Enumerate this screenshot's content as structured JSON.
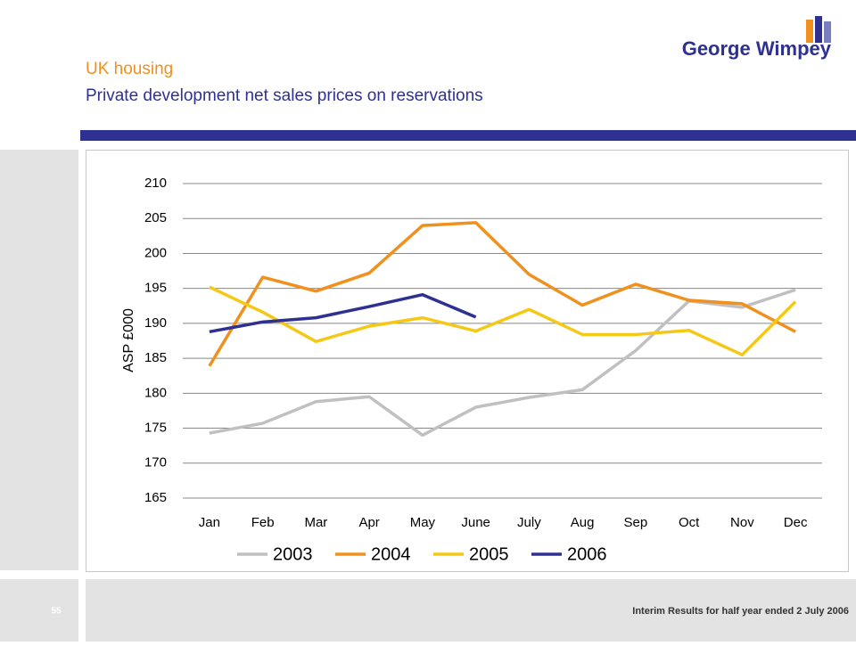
{
  "header": {
    "title": "UK housing",
    "subtitle": "Private development net sales prices on reservations",
    "logo": "George Wimpey"
  },
  "footer": {
    "page": "55",
    "text": "Interim Results for half year ended 2 July 2006"
  },
  "chart_data": {
    "type": "line",
    "ylabel": "ASP £000",
    "categories": [
      "Jan",
      "Feb",
      "Mar",
      "Apr",
      "May",
      "June",
      "July",
      "Aug",
      "Sep",
      "Oct",
      "Nov",
      "Dec"
    ],
    "series": [
      {
        "name": "2003",
        "color": "#c0c0c0",
        "values": [
          174.3,
          175.7,
          178.8,
          179.5,
          174.0,
          178.0,
          179.4,
          180.5,
          186.1,
          193.2,
          192.3,
          194.8
        ]
      },
      {
        "name": "2004",
        "color": "#f0901e",
        "values": [
          183.9,
          196.6,
          194.6,
          197.2,
          204.0,
          204.4,
          197.0,
          192.6,
          195.6,
          193.3,
          192.8,
          188.8
        ]
      },
      {
        "name": "2005",
        "color": "#f5c816",
        "values": [
          195.2,
          191.6,
          187.4,
          189.6,
          190.8,
          188.9,
          192.0,
          188.4,
          188.4,
          189.0,
          185.5,
          193.1
        ]
      },
      {
        "name": "2006",
        "color": "#2e3192",
        "values": [
          188.8,
          190.2,
          190.8,
          192.4,
          194.1,
          190.9,
          null,
          null,
          null,
          null,
          null,
          null
        ]
      }
    ],
    "ylim": [
      165,
      210
    ],
    "yticks": [
      165,
      170,
      175,
      180,
      185,
      190,
      195,
      200,
      205,
      210
    ],
    "grid": true,
    "legend": "bottom"
  }
}
